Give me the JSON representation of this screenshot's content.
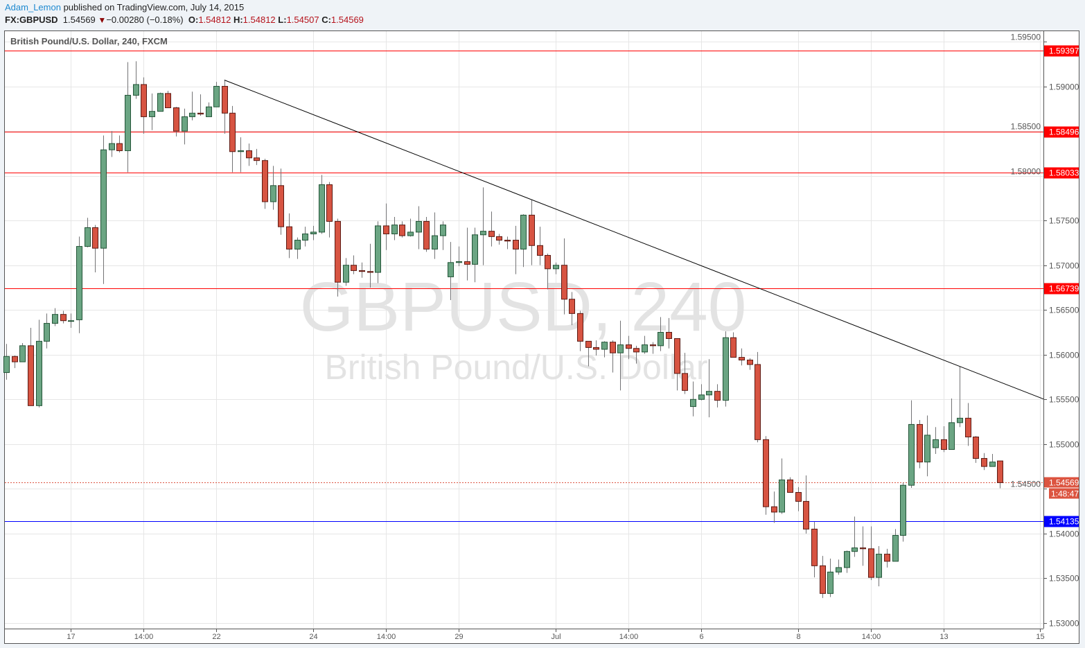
{
  "header": {
    "author": "Adam_Lemon",
    "published_text": "published on TradingView.com, July 14, 2015",
    "symbol": "FX:GBPUSD",
    "last_price": "1.54569",
    "change": "−0.00280 (−0.18%)",
    "change_direction_icon": "triangle-down-icon",
    "open_label": "O:",
    "open": "1.54812",
    "high_label": "H:",
    "high": "1.54812",
    "low_label": "L:",
    "low": "1.54507",
    "close_label": "C:",
    "close": "1.54569"
  },
  "chart_data": {
    "type": "candlestick",
    "title": "British Pound/U.S. Dollar, 240, FXCM",
    "watermark_line1": "GBPUSD, 240",
    "watermark_line2": "British Pound/U.S. Dollar",
    "ylim": [
      1.5295,
      1.5962
    ],
    "grid": true,
    "y_ticks": [
      "1.59500",
      "1.59000",
      "1.58500",
      "1.58000",
      "1.57500",
      "1.57000",
      "1.56500",
      "1.56000",
      "1.55500",
      "1.55000",
      "1.54500",
      "1.54000",
      "1.53500",
      "1.53000"
    ],
    "x_ticks": [
      {
        "label": "17",
        "bar": 8
      },
      {
        "label": "14:00",
        "bar": 17
      },
      {
        "label": "22",
        "bar": 26
      },
      {
        "label": "24",
        "bar": 38
      },
      {
        "label": "14:00",
        "bar": 47
      },
      {
        "label": "29",
        "bar": 56
      },
      {
        "label": "Jul",
        "bar": 68
      },
      {
        "label": "14:00",
        "bar": 77
      },
      {
        "label": "6",
        "bar": 86
      },
      {
        "label": "8",
        "bar": 98
      },
      {
        "label": "14:00",
        "bar": 107
      },
      {
        "label": "13",
        "bar": 116
      },
      {
        "label": "15",
        "bar": 128
      }
    ],
    "ohlc_order": [
      "open",
      "high",
      "low",
      "close"
    ],
    "candles": [
      [
        1.558,
        1.5612,
        1.5572,
        1.5598
      ],
      [
        1.5598,
        1.5599,
        1.5585,
        1.5592
      ],
      [
        1.5592,
        1.5613,
        1.5592,
        1.561
      ],
      [
        1.561,
        1.563,
        1.5543,
        1.5543
      ],
      [
        1.5543,
        1.5639,
        1.5541,
        1.5615
      ],
      [
        1.5615,
        1.5646,
        1.5607,
        1.5635
      ],
      [
        1.5635,
        1.5652,
        1.5632,
        1.5645
      ],
      [
        1.5645,
        1.5649,
        1.5635,
        1.5638
      ],
      [
        1.5638,
        1.5646,
        1.563,
        1.5638
      ],
      [
        1.5639,
        1.5732,
        1.5624,
        1.5721
      ],
      [
        1.5721,
        1.5753,
        1.572,
        1.5742
      ],
      [
        1.5742,
        1.5745,
        1.5692,
        1.5719
      ],
      [
        1.5719,
        1.5845,
        1.5679,
        1.5829
      ],
      [
        1.5829,
        1.585,
        1.5821,
        1.5836
      ],
      [
        1.5836,
        1.5845,
        1.5826,
        1.5828
      ],
      [
        1.5828,
        1.5927,
        1.5804,
        1.589
      ],
      [
        1.589,
        1.5928,
        1.5886,
        1.5902
      ],
      [
        1.5902,
        1.591,
        1.5847,
        1.5866
      ],
      [
        1.5866,
        1.5892,
        1.5851,
        1.5872
      ],
      [
        1.5872,
        1.5893,
        1.5872,
        1.5892
      ],
      [
        1.5892,
        1.5895,
        1.5876,
        1.5876
      ],
      [
        1.5876,
        1.5877,
        1.5844,
        1.585
      ],
      [
        1.585,
        1.5875,
        1.5835,
        1.5866
      ],
      [
        1.5866,
        1.5894,
        1.5862,
        1.587
      ],
      [
        1.587,
        1.5891,
        1.5867,
        1.5869
      ],
      [
        1.5866,
        1.5882,
        1.5866,
        1.5877
      ],
      [
        1.5877,
        1.5905,
        1.5877,
        1.59
      ],
      [
        1.59,
        1.5907,
        1.5847,
        1.587
      ],
      [
        1.587,
        1.5878,
        1.5804,
        1.5827
      ],
      [
        1.5827,
        1.5843,
        1.5804,
        1.5828
      ],
      [
        1.5828,
        1.5836,
        1.5811,
        1.582
      ],
      [
        1.582,
        1.583,
        1.5812,
        1.5817
      ],
      [
        1.5817,
        1.5819,
        1.5763,
        1.5771
      ],
      [
        1.5771,
        1.5811,
        1.5762,
        1.5789
      ],
      [
        1.5789,
        1.5808,
        1.5734,
        1.5743
      ],
      [
        1.5743,
        1.5758,
        1.5708,
        1.5718
      ],
      [
        1.5718,
        1.5731,
        1.5707,
        1.5728
      ],
      [
        1.5728,
        1.5743,
        1.5721,
        1.5735
      ],
      [
        1.5735,
        1.5744,
        1.5728,
        1.5737
      ],
      [
        1.5737,
        1.5801,
        1.5735,
        1.579
      ],
      [
        1.579,
        1.5793,
        1.5731,
        1.5749
      ],
      [
        1.5749,
        1.5752,
        1.5665,
        1.5681
      ],
      [
        1.5681,
        1.5708,
        1.5677,
        1.57
      ],
      [
        1.57,
        1.5711,
        1.569,
        1.5694
      ],
      [
        1.5694,
        1.5703,
        1.5686,
        1.5693
      ],
      [
        1.5693,
        1.5724,
        1.5675,
        1.5692
      ],
      [
        1.5692,
        1.5749,
        1.568,
        1.5744
      ],
      [
        1.5744,
        1.5769,
        1.5717,
        1.5735
      ],
      [
        1.5735,
        1.5754,
        1.5728,
        1.5745
      ],
      [
        1.5745,
        1.5749,
        1.5731,
        1.5733
      ],
      [
        1.5733,
        1.5752,
        1.5732,
        1.5737
      ],
      [
        1.5737,
        1.5766,
        1.5718,
        1.5749
      ],
      [
        1.5749,
        1.5754,
        1.5715,
        1.5718
      ],
      [
        1.5718,
        1.5759,
        1.5707,
        1.5733
      ],
      [
        1.5733,
        1.5749,
        1.5717,
        1.5745
      ],
      [
        1.5687,
        1.5726,
        1.5661,
        1.5703
      ],
      [
        1.5703,
        1.5721,
        1.5699,
        1.5704
      ],
      [
        1.5704,
        1.5742,
        1.5683,
        1.5701
      ],
      [
        1.5701,
        1.5742,
        1.5681,
        1.5734
      ],
      [
        1.5734,
        1.5787,
        1.57,
        1.5738
      ],
      [
        1.5738,
        1.576,
        1.5721,
        1.5732
      ],
      [
        1.5732,
        1.5735,
        1.5723,
        1.5728
      ],
      [
        1.5728,
        1.5732,
        1.5718,
        1.5727
      ],
      [
        1.5728,
        1.5744,
        1.569,
        1.5718
      ],
      [
        1.5718,
        1.5757,
        1.5698,
        1.5756
      ],
      [
        1.5756,
        1.5773,
        1.57,
        1.5722
      ],
      [
        1.5722,
        1.5743,
        1.57,
        1.5711
      ],
      [
        1.5711,
        1.5713,
        1.5673,
        1.5696
      ],
      [
        1.5696,
        1.5703,
        1.569,
        1.57
      ],
      [
        1.57,
        1.573,
        1.5645,
        1.5662
      ],
      [
        1.5662,
        1.567,
        1.5633,
        1.5646
      ],
      [
        1.5646,
        1.5649,
        1.5604,
        1.5615
      ],
      [
        1.5615,
        1.5615,
        1.5587,
        1.5608
      ],
      [
        1.5608,
        1.5616,
        1.5599,
        1.5606
      ],
      [
        1.5606,
        1.5615,
        1.5597,
        1.5614
      ],
      [
        1.5614,
        1.5616,
        1.558,
        1.5602
      ],
      [
        1.5602,
        1.5638,
        1.556,
        1.5611
      ],
      [
        1.5611,
        1.5621,
        1.5595,
        1.5607
      ],
      [
        1.5607,
        1.561,
        1.559,
        1.5603
      ],
      [
        1.5603,
        1.5621,
        1.5601,
        1.5611
      ],
      [
        1.5611,
        1.5614,
        1.5601,
        1.561
      ],
      [
        1.561,
        1.5642,
        1.5604,
        1.5625
      ],
      [
        1.5625,
        1.5641,
        1.5607,
        1.5618
      ],
      [
        1.5618,
        1.5618,
        1.556,
        1.5579
      ],
      [
        1.5579,
        1.5602,
        1.5556,
        1.556
      ],
      [
        1.5542,
        1.557,
        1.5531,
        1.555
      ],
      [
        1.555,
        1.5567,
        1.5549,
        1.5555
      ],
      [
        1.5555,
        1.5595,
        1.553,
        1.5559
      ],
      [
        1.5559,
        1.5567,
        1.5541,
        1.5549
      ],
      [
        1.5549,
        1.5626,
        1.5542,
        1.5619
      ],
      [
        1.5619,
        1.5625,
        1.5597,
        1.5597
      ],
      [
        1.5597,
        1.5607,
        1.5588,
        1.5594
      ],
      [
        1.5594,
        1.5596,
        1.5583,
        1.5589
      ],
      [
        1.5589,
        1.5603,
        1.5502,
        1.5505
      ],
      [
        1.5505,
        1.5509,
        1.5421,
        1.543
      ],
      [
        1.543,
        1.5447,
        1.5412,
        1.5424
      ],
      [
        1.5424,
        1.5484,
        1.5422,
        1.546
      ],
      [
        1.546,
        1.5463,
        1.5446,
        1.5446
      ],
      [
        1.5446,
        1.5452,
        1.5425,
        1.5436
      ],
      [
        1.5436,
        1.5465,
        1.54,
        1.5405
      ],
      [
        1.5405,
        1.5413,
        1.5351,
        1.5364
      ],
      [
        1.5364,
        1.5375,
        1.5328,
        1.5333
      ],
      [
        1.5333,
        1.5372,
        1.5329,
        1.5357
      ],
      [
        1.5357,
        1.5371,
        1.5354,
        1.5362
      ],
      [
        1.5362,
        1.5381,
        1.5356,
        1.538
      ],
      [
        1.538,
        1.5419,
        1.5374,
        1.5384
      ],
      [
        1.5384,
        1.5408,
        1.5364,
        1.5383
      ],
      [
        1.5383,
        1.5408,
        1.5348,
        1.5351
      ],
      [
        1.5351,
        1.5386,
        1.5341,
        1.5377
      ],
      [
        1.5377,
        1.5383,
        1.5362,
        1.5369
      ],
      [
        1.5369,
        1.5405,
        1.5369,
        1.5398
      ],
      [
        1.5398,
        1.5457,
        1.5391,
        1.5454
      ],
      [
        1.5454,
        1.5549,
        1.5451,
        1.5522
      ],
      [
        1.5522,
        1.5527,
        1.5473,
        1.548
      ],
      [
        1.548,
        1.5532,
        1.5464,
        1.551
      ],
      [
        1.5496,
        1.5519,
        1.5489,
        1.5505
      ],
      [
        1.5505,
        1.552,
        1.5491,
        1.5494
      ],
      [
        1.5494,
        1.5551,
        1.5494,
        1.5524
      ],
      [
        1.5524,
        1.5587,
        1.5519,
        1.5529
      ],
      [
        1.5529,
        1.5546,
        1.5498,
        1.5508
      ],
      [
        1.5508,
        1.5509,
        1.5479,
        1.5484
      ],
      [
        1.5484,
        1.549,
        1.5471,
        1.5475
      ],
      [
        1.5475,
        1.5489,
        1.5475,
        1.548
      ],
      [
        1.54812,
        1.54812,
        1.54507,
        1.54569
      ]
    ],
    "horizontal_levels": [
      {
        "price": 1.59397,
        "label": "1.59397",
        "color": "#ff0000"
      },
      {
        "price": 1.58496,
        "label": "1.58496",
        "color": "#ff0000"
      },
      {
        "price": 1.58033,
        "label": "1.58033",
        "color": "#ff0000"
      },
      {
        "price": 1.56739,
        "label": "1.56739",
        "color": "#ff0000"
      },
      {
        "price": 1.54135,
        "label": "1.54135",
        "color": "#0000ff"
      }
    ],
    "trendline": {
      "from_bar": 28,
      "from_price": 1.5907,
      "through_bar": 119,
      "through_price": 1.5587,
      "extend": "right",
      "color": "#000000"
    },
    "last_price_marker": {
      "price": 1.54569,
      "label": "1.54569",
      "countdown": "1:48:47",
      "color": "#dc5440"
    },
    "colors": {
      "up": "#6ba583",
      "down": "#d75442",
      "up_border": "#225437",
      "down_border": "#5b1a13",
      "wick": "#737375"
    }
  }
}
